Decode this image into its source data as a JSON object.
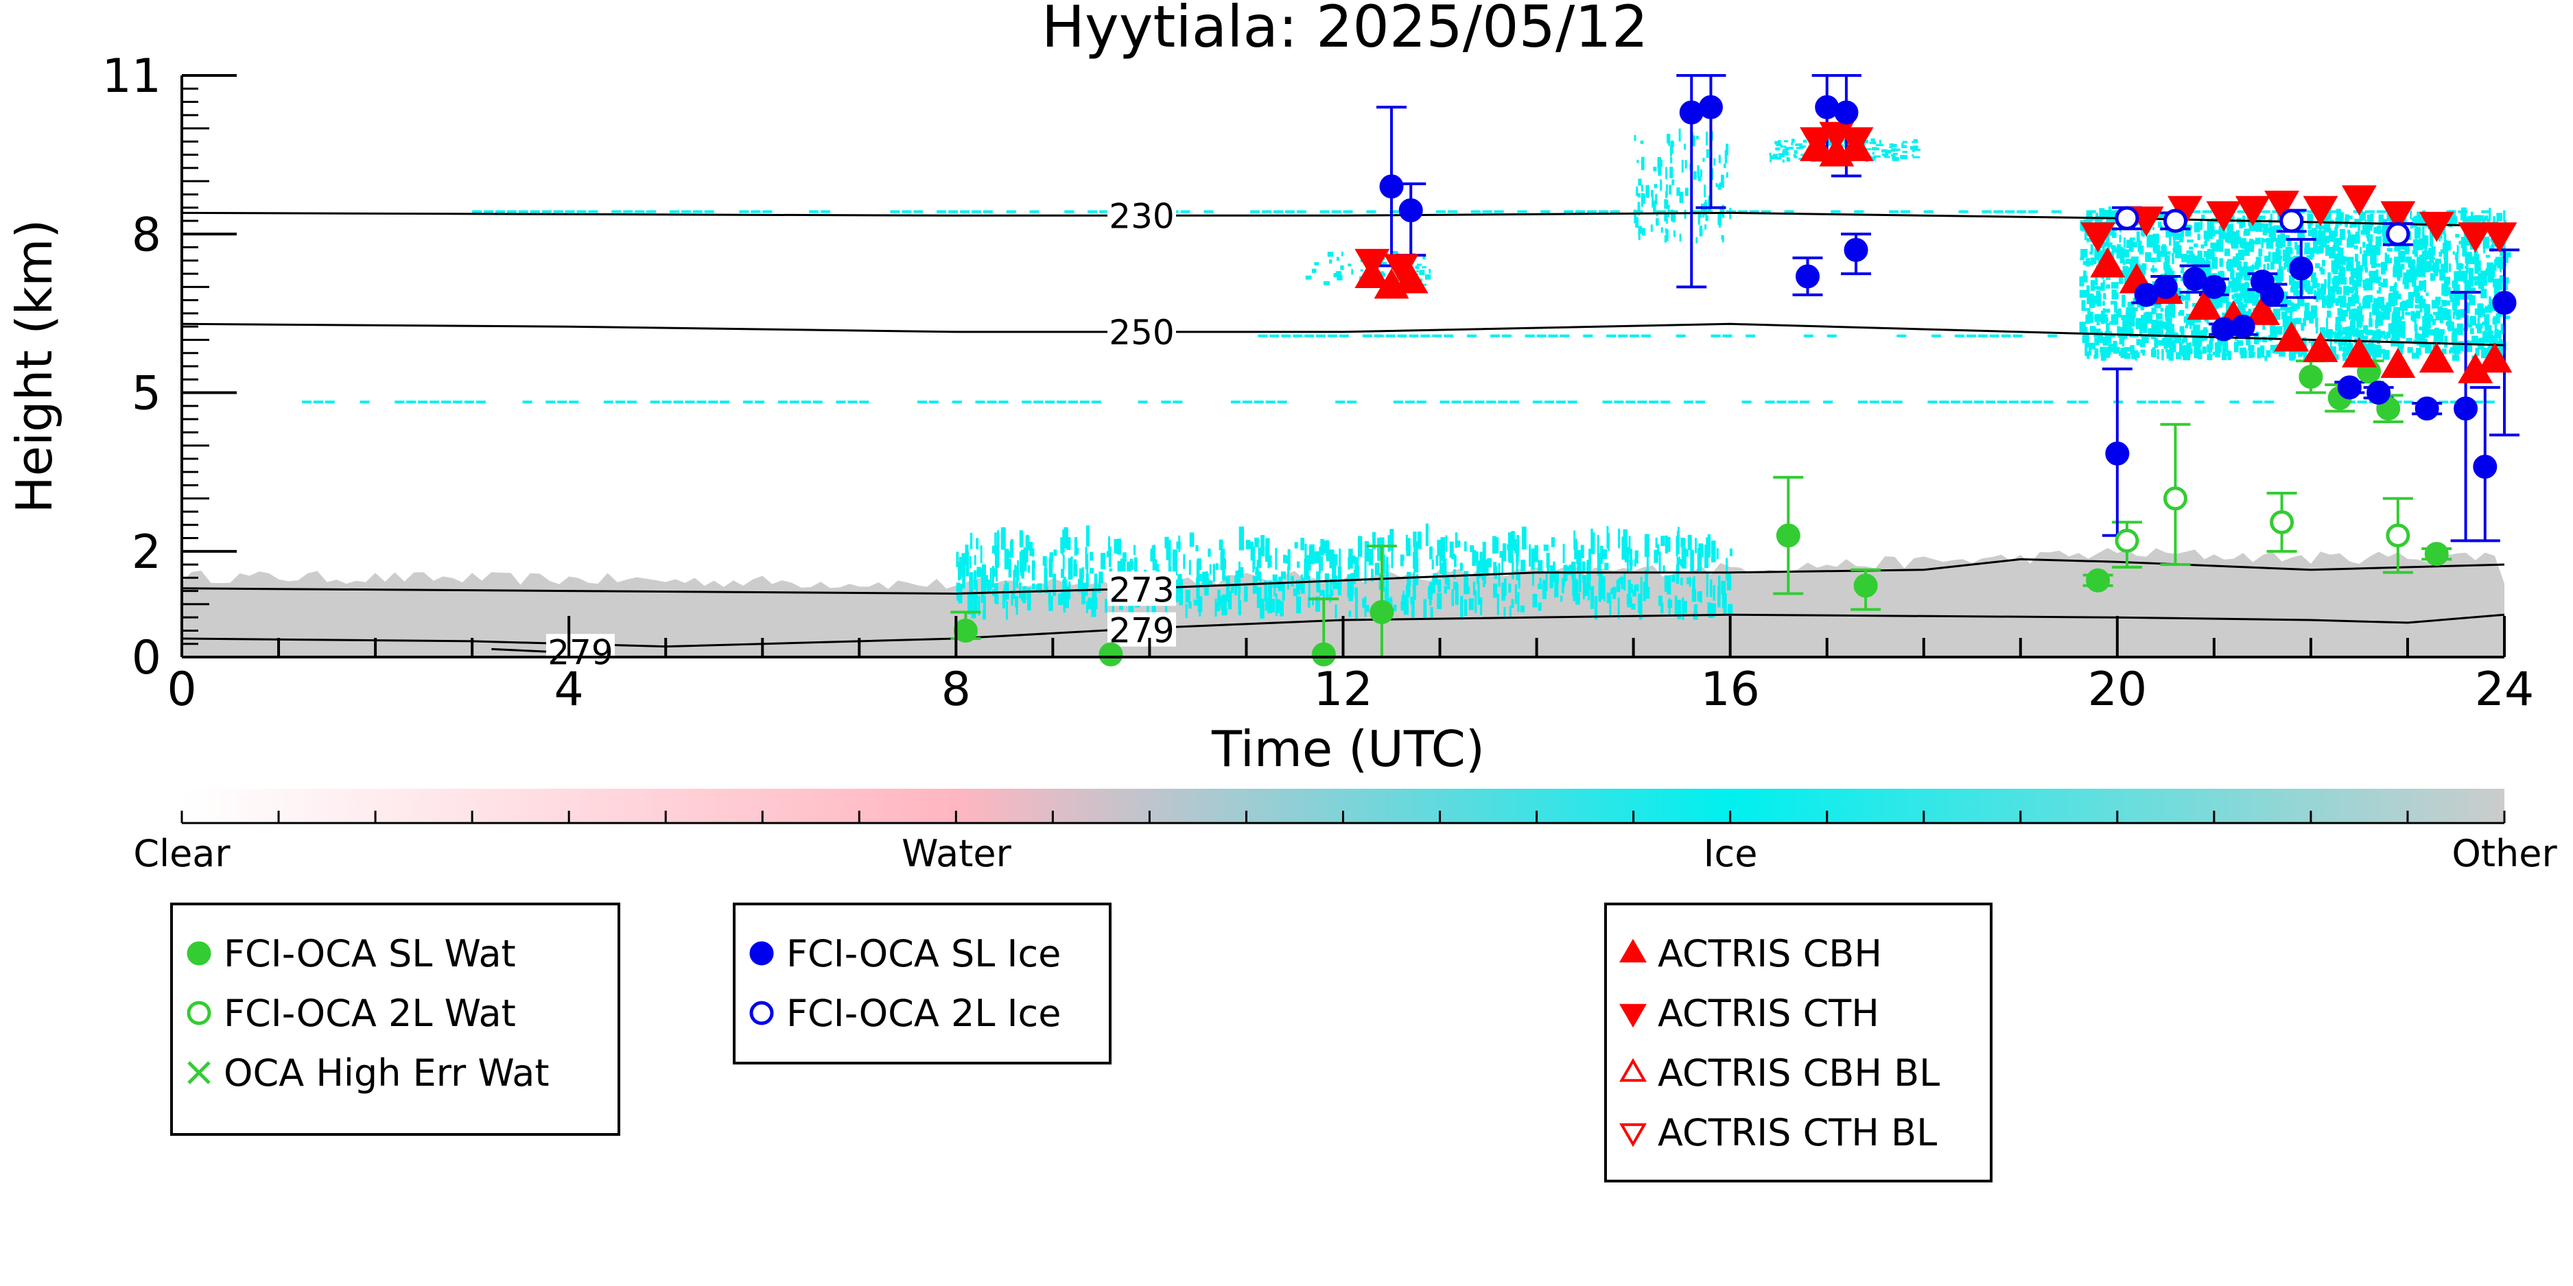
{
  "colors": {
    "wat": "#33cc33",
    "ice": "#0000ee",
    "actris": "#ff0000",
    "ice_cloud": "#00f0f0",
    "other": "#cccccc",
    "contour": "#000000"
  },
  "chart_data": {
    "type": "scatter",
    "title": "Hyytiala: 2025/05/12",
    "xlabel": "Time (UTC)",
    "ylabel": "Height (km)",
    "xlim": [
      0,
      24
    ],
    "ylim": [
      0,
      11
    ],
    "x_ticks": [
      0,
      4,
      8,
      12,
      16,
      20,
      24
    ],
    "y_ticks": [
      0,
      2,
      5,
      8,
      11
    ],
    "y_tick_labels": [
      "0",
      "2",
      "5",
      "8",
      "11"
    ],
    "colorbar": {
      "labels": [
        "Clear",
        "Water",
        "Ice",
        "Other"
      ],
      "colors": [
        "#ffffff",
        "#ffb6c1",
        "#00f0f0",
        "#cccccc"
      ]
    },
    "legend": {
      "placement": "below",
      "groups": [
        [
          {
            "key": "sl_wat",
            "label": "FCI-OCA SL Wat"
          },
          {
            "key": "l2_wat",
            "label": "FCI-OCA 2L Wat"
          },
          {
            "key": "high_err_wat",
            "label": "OCA High Err Wat"
          }
        ],
        [
          {
            "key": "sl_ice",
            "label": "FCI-OCA SL Ice"
          },
          {
            "key": "l2_ice",
            "label": "FCI-OCA 2L Ice"
          }
        ],
        [
          {
            "key": "cbh",
            "label": "ACTRIS CBH"
          },
          {
            "key": "cth",
            "label": "ACTRIS CTH"
          },
          {
            "key": "cbh_bl",
            "label": "ACTRIS CBH BL"
          },
          {
            "key": "cth_bl",
            "label": "ACTRIS CTH BL"
          }
        ]
      ]
    },
    "contours": [
      {
        "label": "230",
        "label_x": 9.6,
        "points": [
          [
            0,
            8.4
          ],
          [
            8,
            8.35
          ],
          [
            12,
            8.35
          ],
          [
            16,
            8.4
          ],
          [
            20,
            8.3
          ],
          [
            24,
            8.15
          ]
        ]
      },
      {
        "label": "250",
        "label_x": 9.6,
        "points": [
          [
            0,
            6.3
          ],
          [
            4,
            6.25
          ],
          [
            8,
            6.15
          ],
          [
            12,
            6.15
          ],
          [
            16,
            6.3
          ],
          [
            20,
            6.1
          ],
          [
            24,
            5.9
          ]
        ]
      },
      {
        "label": "273",
        "label_x": 9.6,
        "points": [
          [
            0,
            1.3
          ],
          [
            4,
            1.25
          ],
          [
            8,
            1.2
          ],
          [
            10,
            1.3
          ],
          [
            12,
            1.45
          ],
          [
            14,
            1.6
          ],
          [
            16,
            1.6
          ],
          [
            18,
            1.65
          ],
          [
            19,
            1.85
          ],
          [
            20,
            1.8
          ],
          [
            22,
            1.65
          ],
          [
            24,
            1.75
          ]
        ]
      },
      {
        "label": "279",
        "label_x": 9.6,
        "points": [
          [
            0,
            0.35
          ],
          [
            3,
            0.3
          ],
          [
            5,
            0.2
          ],
          [
            8,
            0.35
          ],
          [
            10,
            0.55
          ],
          [
            12,
            0.7
          ],
          [
            16,
            0.8
          ],
          [
            20,
            0.75
          ],
          [
            22,
            0.7
          ],
          [
            23,
            0.65
          ],
          [
            24,
            0.8
          ]
        ]
      },
      {
        "label": "279",
        "label_x": 3.8,
        "points": [
          [
            3.2,
            0.15
          ],
          [
            4.4,
            0.05
          ]
        ]
      }
    ],
    "series": [
      {
        "name": "FCI-OCA SL Wat",
        "key": "sl_wat",
        "points": [
          {
            "x": 8.1,
            "y": 0.5,
            "err": [
              0.35,
              0.85
            ]
          },
          {
            "x": 9.6,
            "y": 0.05,
            "err": null
          },
          {
            "x": 11.8,
            "y": 0.05,
            "err": [
              0.0,
              1.1
            ]
          },
          {
            "x": 12.4,
            "y": 0.85,
            "err": [
              0.0,
              2.1
            ]
          },
          {
            "x": 16.6,
            "y": 2.3,
            "err": [
              1.2,
              3.4
            ]
          },
          {
            "x": 17.4,
            "y": 1.35,
            "err": [
              0.9,
              1.65
            ]
          },
          {
            "x": 19.8,
            "y": 1.45,
            "err": [
              1.35,
              1.55
            ]
          },
          {
            "x": 22.0,
            "y": 5.3,
            "err": [
              5.0,
              5.6
            ]
          },
          {
            "x": 22.3,
            "y": 4.9,
            "err": [
              4.65,
              5.15
            ]
          },
          {
            "x": 22.6,
            "y": 5.4,
            "err": [
              5.2,
              5.6
            ]
          },
          {
            "x": 22.8,
            "y": 4.7,
            "err": [
              4.45,
              4.95
            ]
          },
          {
            "x": 23.3,
            "y": 1.95,
            "err": [
              1.85,
              2.05
            ]
          }
        ]
      },
      {
        "name": "FCI-OCA 2L Wat",
        "key": "l2_wat",
        "points": [
          {
            "x": 20.1,
            "y": 2.2,
            "err": [
              1.7,
              2.55
            ]
          },
          {
            "x": 20.6,
            "y": 3.0,
            "err": [
              1.75,
              4.4
            ]
          },
          {
            "x": 21.7,
            "y": 2.55,
            "err": [
              2.0,
              3.1
            ]
          },
          {
            "x": 22.9,
            "y": 2.3,
            "err": [
              1.6,
              3.0
            ]
          }
        ]
      },
      {
        "name": "FCI-OCA SL Ice",
        "key": "sl_ice",
        "points": [
          {
            "x": 12.5,
            "y": 8.9,
            "err": [
              7.4,
              10.4
            ]
          },
          {
            "x": 12.7,
            "y": 8.45,
            "err": [
              7.6,
              8.95
            ]
          },
          {
            "x": 15.6,
            "y": 10.3,
            "err": [
              7.0,
              11.0
            ]
          },
          {
            "x": 15.8,
            "y": 10.4,
            "err": [
              8.5,
              11.0
            ]
          },
          {
            "x": 16.8,
            "y": 7.2,
            "err": [
              6.85,
              7.55
            ]
          },
          {
            "x": 17.0,
            "y": 10.4,
            "err": [
              9.4,
              11.0
            ]
          },
          {
            "x": 17.2,
            "y": 10.3,
            "err": [
              9.1,
              11.0
            ]
          },
          {
            "x": 17.3,
            "y": 7.7,
            "err": [
              7.25,
              8.0
            ]
          },
          {
            "x": 20.0,
            "y": 3.85,
            "err": [
              2.3,
              5.45
            ]
          },
          {
            "x": 20.3,
            "y": 6.85,
            "err": [
              6.7,
              7.0
            ]
          },
          {
            "x": 20.5,
            "y": 7.0,
            "err": [
              6.8,
              7.2
            ]
          },
          {
            "x": 20.8,
            "y": 7.15,
            "err": [
              6.9,
              7.4
            ]
          },
          {
            "x": 21.0,
            "y": 7.0,
            "err": [
              6.85,
              7.15
            ]
          },
          {
            "x": 21.1,
            "y": 6.2,
            "err": [
              6.1,
              6.3
            ]
          },
          {
            "x": 21.3,
            "y": 6.25,
            "err": [
              6.1,
              6.4
            ]
          },
          {
            "x": 21.5,
            "y": 7.1,
            "err": [
              6.95,
              7.25
            ]
          },
          {
            "x": 21.6,
            "y": 6.85,
            "err": [
              6.65,
              7.05
            ]
          },
          {
            "x": 21.9,
            "y": 7.35,
            "err": [
              6.8,
              7.9
            ]
          },
          {
            "x": 22.4,
            "y": 5.1,
            "err": [
              5.0,
              5.2
            ]
          },
          {
            "x": 22.7,
            "y": 5.0,
            "err": [
              4.9,
              5.1
            ]
          },
          {
            "x": 23.2,
            "y": 4.7,
            "err": [
              4.6,
              4.8
            ]
          },
          {
            "x": 23.6,
            "y": 4.7,
            "err": [
              2.2,
              6.9
            ]
          },
          {
            "x": 23.8,
            "y": 3.6,
            "err": [
              2.2,
              5.1
            ]
          },
          {
            "x": 24.0,
            "y": 6.7,
            "err": [
              4.2,
              7.7
            ]
          }
        ]
      },
      {
        "name": "FCI-OCA 2L Ice",
        "key": "l2_ice",
        "points": [
          {
            "x": 20.1,
            "y": 8.3,
            "err": [
              8.1,
              8.5
            ]
          },
          {
            "x": 20.6,
            "y": 8.25,
            "err": [
              8.1,
              8.4
            ]
          },
          {
            "x": 21.8,
            "y": 8.25,
            "err": [
              8.05,
              8.45
            ]
          },
          {
            "x": 22.9,
            "y": 8.0,
            "err": [
              7.8,
              8.2
            ]
          }
        ]
      },
      {
        "name": "ACTRIS CBH",
        "key": "cbh",
        "points": [
          {
            "x": 12.3,
            "y": 7.2
          },
          {
            "x": 12.5,
            "y": 7.0
          },
          {
            "x": 12.7,
            "y": 7.1
          },
          {
            "x": 16.9,
            "y": 9.6
          },
          {
            "x": 17.1,
            "y": 9.5
          },
          {
            "x": 17.3,
            "y": 9.6
          },
          {
            "x": 19.9,
            "y": 7.4
          },
          {
            "x": 20.2,
            "y": 7.1
          },
          {
            "x": 20.5,
            "y": 6.9
          },
          {
            "x": 20.9,
            "y": 6.6
          },
          {
            "x": 21.2,
            "y": 6.4
          },
          {
            "x": 21.5,
            "y": 6.5
          },
          {
            "x": 21.8,
            "y": 6.0
          },
          {
            "x": 22.1,
            "y": 5.8
          },
          {
            "x": 22.5,
            "y": 5.7
          },
          {
            "x": 22.9,
            "y": 5.5
          },
          {
            "x": 23.3,
            "y": 5.6
          },
          {
            "x": 23.7,
            "y": 5.4
          },
          {
            "x": 23.9,
            "y": 5.6
          }
        ]
      },
      {
        "name": "ACTRIS CTH",
        "key": "cth",
        "points": [
          {
            "x": 12.3,
            "y": 7.5
          },
          {
            "x": 12.6,
            "y": 7.4
          },
          {
            "x": 16.9,
            "y": 9.8
          },
          {
            "x": 17.1,
            "y": 9.9
          },
          {
            "x": 17.3,
            "y": 9.8
          },
          {
            "x": 19.8,
            "y": 8.0
          },
          {
            "x": 20.3,
            "y": 8.3
          },
          {
            "x": 20.7,
            "y": 8.5
          },
          {
            "x": 21.1,
            "y": 8.4
          },
          {
            "x": 21.4,
            "y": 8.5
          },
          {
            "x": 21.7,
            "y": 8.6
          },
          {
            "x": 22.1,
            "y": 8.5
          },
          {
            "x": 22.5,
            "y": 8.7
          },
          {
            "x": 22.9,
            "y": 8.4
          },
          {
            "x": 23.3,
            "y": 8.2
          },
          {
            "x": 23.7,
            "y": 8.0
          },
          {
            "x": 23.95,
            "y": 8.0
          }
        ]
      },
      {
        "name": "ACTRIS CBH BL",
        "key": "cbh_bl",
        "points": []
      },
      {
        "name": "ACTRIS CTH BL",
        "key": "cth_bl",
        "points": []
      }
    ]
  }
}
